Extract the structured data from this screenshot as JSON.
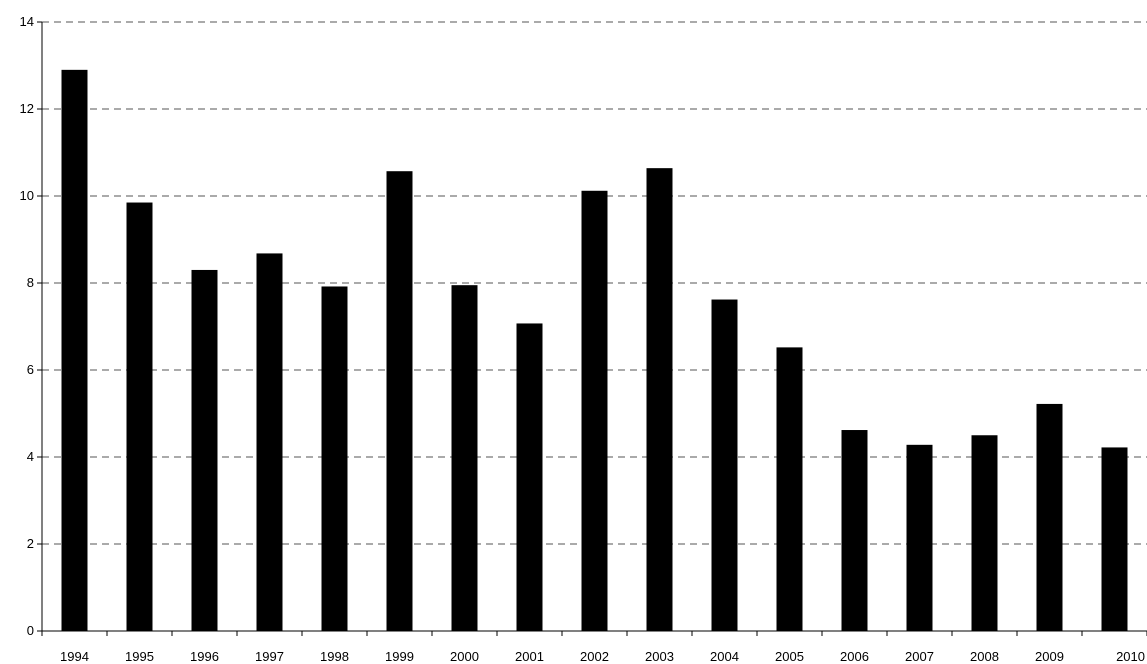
{
  "chart_data": {
    "type": "bar",
    "categories": [
      "1994",
      "1995",
      "1996",
      "1997",
      "1998",
      "1999",
      "2000",
      "2001",
      "2002",
      "2003",
      "2004",
      "2005",
      "2006",
      "2007",
      "2008",
      "2009",
      "2010"
    ],
    "values": [
      12.9,
      9.85,
      8.3,
      8.68,
      7.92,
      10.57,
      7.95,
      7.07,
      10.12,
      10.64,
      7.62,
      6.52,
      4.62,
      4.28,
      4.5,
      5.22,
      4.22
    ],
    "yticks": [
      0,
      2,
      4,
      6,
      8,
      10,
      12,
      14
    ],
    "ylim": [
      0,
      14
    ],
    "grid": true,
    "bar_color": "#000000",
    "grid_color": "#555555"
  }
}
